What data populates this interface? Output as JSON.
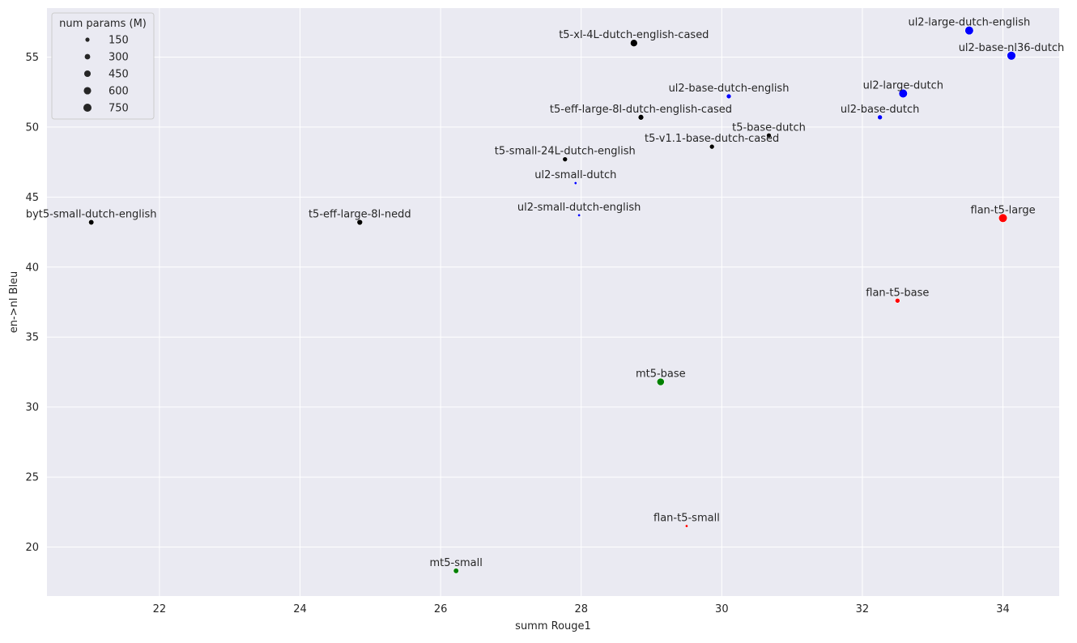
{
  "chart_data": {
    "type": "scatter",
    "title": "",
    "xlabel": "summ Rouge1",
    "ylabel": "en->nl Bleu",
    "xlim": [
      20.4,
      34.8
    ],
    "ylim": [
      16.5,
      58.5
    ],
    "x_ticks": [
      22,
      24,
      26,
      28,
      30,
      32,
      34
    ],
    "y_ticks": [
      20,
      25,
      30,
      35,
      40,
      45,
      50,
      55
    ],
    "grid": true,
    "background": "#eaeaf2",
    "grid_color": "#ffffff",
    "legend": {
      "title": "num params (M)",
      "placement": "top-left",
      "sizes": [
        150,
        300,
        450,
        600,
        750
      ],
      "labels": [
        "150",
        "300",
        "450",
        "600",
        "750"
      ],
      "marker_color": "#262626"
    },
    "colors": {
      "black": "#000000",
      "blue": "#0000ff",
      "red": "#ff0000",
      "green": "#008000"
    },
    "points": [
      {
        "label": "ul2-large-dutch-english",
        "x": 33.52,
        "y": 56.9,
        "size": 780,
        "color": "blue"
      },
      {
        "label": "t5-xl-4L-dutch-english-cased",
        "x": 28.75,
        "y": 56.0,
        "size": 550,
        "color": "black"
      },
      {
        "label": "ul2-base-nl36-dutch",
        "x": 34.12,
        "y": 55.1,
        "size": 800,
        "color": "blue"
      },
      {
        "label": "ul2-large-dutch",
        "x": 32.58,
        "y": 52.4,
        "size": 780,
        "color": "blue"
      },
      {
        "label": "ul2-base-dutch-english",
        "x": 30.1,
        "y": 52.2,
        "size": 250,
        "color": "blue"
      },
      {
        "label": "t5-eff-large-8l-dutch-english-cased",
        "x": 28.85,
        "y": 50.7,
        "size": 330,
        "color": "black"
      },
      {
        "label": "ul2-base-dutch",
        "x": 32.25,
        "y": 50.7,
        "size": 250,
        "color": "blue"
      },
      {
        "label": "t5-base-dutch",
        "x": 30.67,
        "y": 49.4,
        "size": 250,
        "color": "black"
      },
      {
        "label": "t5-v1.1-base-dutch-cased",
        "x": 29.86,
        "y": 48.6,
        "size": 250,
        "color": "black"
      },
      {
        "label": "t5-small-24L-dutch-english",
        "x": 27.77,
        "y": 47.7,
        "size": 250,
        "color": "black"
      },
      {
        "label": "ul2-small-dutch",
        "x": 27.92,
        "y": 46.0,
        "size": 80,
        "color": "blue"
      },
      {
        "label": "ul2-small-dutch-english",
        "x": 27.97,
        "y": 43.7,
        "size": 80,
        "color": "blue"
      },
      {
        "label": "byt5-small-dutch-english",
        "x": 21.03,
        "y": 43.2,
        "size": 300,
        "color": "black"
      },
      {
        "label": "t5-eff-large-8l-nedd",
        "x": 24.85,
        "y": 43.2,
        "size": 330,
        "color": "black"
      },
      {
        "label": "flan-t5-large",
        "x": 34.0,
        "y": 43.5,
        "size": 780,
        "color": "red"
      },
      {
        "label": "flan-t5-base",
        "x": 32.5,
        "y": 37.6,
        "size": 250,
        "color": "red"
      },
      {
        "label": "mt5-base",
        "x": 29.13,
        "y": 31.8,
        "size": 580,
        "color": "green"
      },
      {
        "label": "flan-t5-small",
        "x": 29.5,
        "y": 21.5,
        "size": 80,
        "color": "red"
      },
      {
        "label": "mt5-small",
        "x": 26.22,
        "y": 18.3,
        "size": 300,
        "color": "green"
      }
    ]
  }
}
